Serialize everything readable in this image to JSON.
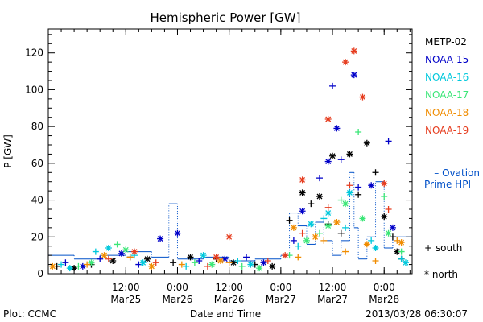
{
  "chart_data": {
    "type": "scatter",
    "title": "Hemispheric Power [GW]",
    "ylabel": "P [GW]",
    "xlabel": "Date and Time",
    "ylim": [
      0,
      133
    ],
    "xlim": [
      "2013-03-24 18:00",
      "2013-03-28 06:30"
    ],
    "yticks": [
      0,
      20,
      40,
      60,
      80,
      100,
      120
    ],
    "xticks": [
      {
        "t": "2013-03-25 12:00",
        "line1": "12:00",
        "line2": "Mar25"
      },
      {
        "t": "2013-03-26 00:00",
        "line1": "0:00",
        "line2": "Mar26"
      },
      {
        "t": "2013-03-26 12:00",
        "line1": "12:00",
        "line2": "Mar26"
      },
      {
        "t": "2013-03-27 00:00",
        "line1": "0:00",
        "line2": "Mar27"
      },
      {
        "t": "2013-03-27 12:00",
        "line1": "12:00",
        "line2": "Mar27"
      },
      {
        "t": "2013-03-28 00:00",
        "line1": "0:00",
        "line2": "Mar28"
      }
    ],
    "grid": false,
    "legend_position": "right",
    "symbols": {
      "south": "+",
      "north": "*"
    },
    "symbol_legend": [
      {
        "glyph": "+",
        "label": "south"
      },
      {
        "glyph": "*",
        "label": "north"
      }
    ],
    "series": [
      {
        "name": "METP-02",
        "color": "#000000",
        "south": [
          [
            "2013-03-24 20:00",
            4
          ],
          [
            "2013-03-25 04:00",
            5
          ],
          [
            "2013-03-25 13:00",
            9
          ],
          [
            "2013-03-25 23:00",
            6
          ],
          [
            "2013-03-26 09:00",
            8
          ],
          [
            "2013-03-26 18:00",
            5
          ],
          [
            "2013-03-27 02:00",
            29
          ],
          [
            "2013-03-27 07:00",
            38
          ],
          [
            "2013-03-27 11:00",
            27
          ],
          [
            "2013-03-27 14:00",
            22
          ],
          [
            "2013-03-27 18:00",
            43
          ],
          [
            "2013-03-27 22:00",
            55
          ],
          [
            "2013-03-28 02:00",
            20
          ],
          [
            "2013-03-28 04:00",
            8
          ]
        ],
        "north": [
          [
            "2013-03-25 00:00",
            3
          ],
          [
            "2013-03-25 09:00",
            7
          ],
          [
            "2013-03-25 17:00",
            8
          ],
          [
            "2013-03-26 03:00",
            9
          ],
          [
            "2013-03-26 13:00",
            6
          ],
          [
            "2013-03-26 22:00",
            4
          ],
          [
            "2013-03-27 05:00",
            44
          ],
          [
            "2013-03-27 09:00",
            42
          ],
          [
            "2013-03-27 12:00",
            64
          ],
          [
            "2013-03-27 16:00",
            65
          ],
          [
            "2013-03-27 20:00",
            71
          ],
          [
            "2013-03-28 00:00",
            31
          ],
          [
            "2013-03-28 03:00",
            12
          ]
        ]
      },
      {
        "name": "NOAA-15",
        "color": "#0000c8",
        "south": [
          [
            "2013-03-24 22:00",
            6
          ],
          [
            "2013-03-25 06:00",
            8
          ],
          [
            "2013-03-25 15:00",
            5
          ],
          [
            "2013-03-26 05:00",
            7
          ],
          [
            "2013-03-26 16:00",
            9
          ],
          [
            "2013-03-27 03:00",
            18
          ],
          [
            "2013-03-27 09:00",
            52
          ],
          [
            "2013-03-27 12:00",
            102
          ],
          [
            "2013-03-27 14:00",
            62
          ],
          [
            "2013-03-27 18:00",
            47
          ],
          [
            "2013-03-28 01:00",
            72
          ]
        ],
        "north": [
          [
            "2013-03-25 02:00",
            4
          ],
          [
            "2013-03-25 11:00",
            11
          ],
          [
            "2013-03-25 20:00",
            19
          ],
          [
            "2013-03-26 00:00",
            22
          ],
          [
            "2013-03-26 11:00",
            8
          ],
          [
            "2013-03-26 20:00",
            6
          ],
          [
            "2013-03-27 05:00",
            34
          ],
          [
            "2013-03-27 11:00",
            61
          ],
          [
            "2013-03-27 13:00",
            79
          ],
          [
            "2013-03-27 17:00",
            108
          ],
          [
            "2013-03-27 21:00",
            48
          ],
          [
            "2013-03-28 02:00",
            25
          ]
        ]
      },
      {
        "name": "NOAA-16",
        "color": "#00c8dc",
        "south": [
          [
            "2013-03-24 21:00",
            5
          ],
          [
            "2013-03-25 05:00",
            12
          ],
          [
            "2013-03-25 14:00",
            10
          ],
          [
            "2013-03-26 02:00",
            4
          ],
          [
            "2013-03-26 14:00",
            7
          ],
          [
            "2013-03-27 04:00",
            15
          ],
          [
            "2013-03-27 10:00",
            30
          ],
          [
            "2013-03-27 15:00",
            25
          ],
          [
            "2013-03-27 21:00",
            18
          ],
          [
            "2013-03-28 04:00",
            8
          ]
        ],
        "north": [
          [
            "2013-03-24 23:00",
            3
          ],
          [
            "2013-03-25 08:00",
            14
          ],
          [
            "2013-03-25 16:00",
            6
          ],
          [
            "2013-03-26 06:00",
            10
          ],
          [
            "2013-03-26 17:00",
            5
          ],
          [
            "2013-03-27 07:00",
            27
          ],
          [
            "2013-03-27 11:00",
            33
          ],
          [
            "2013-03-27 16:00",
            44
          ],
          [
            "2013-03-27 22:00",
            14
          ],
          [
            "2013-03-28 05:00",
            6
          ]
        ]
      },
      {
        "name": "NOAA-17",
        "color": "#3ce678",
        "south": [
          [
            "2013-03-25 01:00",
            4
          ],
          [
            "2013-03-25 10:00",
            16
          ],
          [
            "2013-03-26 04:00",
            6
          ],
          [
            "2013-03-26 15:00",
            4
          ],
          [
            "2013-03-27 02:00",
            10
          ],
          [
            "2013-03-27 09:00",
            22
          ],
          [
            "2013-03-27 14:00",
            40
          ],
          [
            "2013-03-27 18:00",
            77
          ],
          [
            "2013-03-28 00:00",
            42
          ],
          [
            "2013-03-28 04:00",
            12
          ]
        ],
        "north": [
          [
            "2013-03-25 04:00",
            6
          ],
          [
            "2013-03-25 12:00",
            13
          ],
          [
            "2013-03-26 08:00",
            5
          ],
          [
            "2013-03-26 19:00",
            3
          ],
          [
            "2013-03-27 06:00",
            18
          ],
          [
            "2013-03-27 11:00",
            26
          ],
          [
            "2013-03-27 15:00",
            38
          ],
          [
            "2013-03-27 19:00",
            30
          ],
          [
            "2013-03-28 01:00",
            22
          ]
        ]
      },
      {
        "name": "NOAA-18",
        "color": "#f08c00",
        "south": [
          [
            "2013-03-25 03:00",
            5
          ],
          [
            "2013-03-25 13:00",
            9
          ],
          [
            "2013-03-26 01:00",
            5
          ],
          [
            "2013-03-26 12:00",
            6
          ],
          [
            "2013-03-27 04:00",
            9
          ],
          [
            "2013-03-27 10:00",
            18
          ],
          [
            "2013-03-27 15:00",
            12
          ],
          [
            "2013-03-27 22:00",
            7
          ],
          [
            "2013-03-28 03:00",
            18
          ]
        ],
        "north": [
          [
            "2013-03-24 19:00",
            4
          ],
          [
            "2013-03-25 07:00",
            10
          ],
          [
            "2013-03-25 18:00",
            4
          ],
          [
            "2013-03-26 10:00",
            7
          ],
          [
            "2013-03-27 03:00",
            25
          ],
          [
            "2013-03-27 08:00",
            20
          ],
          [
            "2013-03-27 13:00",
            28
          ],
          [
            "2013-03-27 20:00",
            16
          ],
          [
            "2013-03-28 04:00",
            17
          ]
        ]
      },
      {
        "name": "NOAA-19",
        "color": "#e63c1e",
        "south": [
          [
            "2013-03-25 08:00",
            8
          ],
          [
            "2013-03-25 19:00",
            6
          ],
          [
            "2013-03-26 07:00",
            4
          ],
          [
            "2013-03-26 21:00",
            7
          ],
          [
            "2013-03-27 05:00",
            22
          ],
          [
            "2013-03-27 11:00",
            36
          ],
          [
            "2013-03-27 16:00",
            48
          ],
          [
            "2013-03-28 01:00",
            35
          ]
        ],
        "north": [
          [
            "2013-03-25 14:00",
            12
          ],
          [
            "2013-03-26 09:00",
            9
          ],
          [
            "2013-03-26 12:00",
            20
          ],
          [
            "2013-03-27 01:00",
            10
          ],
          [
            "2013-03-27 05:00",
            51
          ],
          [
            "2013-03-27 11:00",
            84
          ],
          [
            "2013-03-27 15:00",
            115
          ],
          [
            "2013-03-27 17:00",
            121
          ],
          [
            "2013-03-27 19:00",
            96
          ],
          [
            "2013-03-28 00:00",
            49
          ]
        ]
      }
    ],
    "ovation": {
      "name": "Ovation Prime HPI",
      "legend_label": "– Ovation Prime HPI",
      "color": "#0050c8",
      "steps": [
        [
          "2013-03-24 18:00",
          10
        ],
        [
          "2013-03-25 00:00",
          8
        ],
        [
          "2013-03-25 06:00",
          10
        ],
        [
          "2013-03-25 12:00",
          12
        ],
        [
          "2013-03-25 18:00",
          9
        ],
        [
          "2013-03-25 22:00",
          38
        ],
        [
          "2013-03-26 00:00",
          8
        ],
        [
          "2013-03-26 06:00",
          9
        ],
        [
          "2013-03-26 12:00",
          7
        ],
        [
          "2013-03-26 18:00",
          8
        ],
        [
          "2013-03-27 00:00",
          10
        ],
        [
          "2013-03-27 02:00",
          33
        ],
        [
          "2013-03-27 04:00",
          26
        ],
        [
          "2013-03-27 06:00",
          16
        ],
        [
          "2013-03-27 08:00",
          28
        ],
        [
          "2013-03-27 10:00",
          18
        ],
        [
          "2013-03-27 12:00",
          10
        ],
        [
          "2013-03-27 14:00",
          18
        ],
        [
          "2013-03-27 16:00",
          55
        ],
        [
          "2013-03-27 17:00",
          25
        ],
        [
          "2013-03-27 18:00",
          8
        ],
        [
          "2013-03-27 20:00",
          20
        ],
        [
          "2013-03-27 22:00",
          50
        ],
        [
          "2013-03-28 00:00",
          14
        ],
        [
          "2013-03-28 02:00",
          20
        ],
        [
          "2013-03-28 06:30",
          20
        ]
      ]
    }
  },
  "footer": {
    "plot_label": "Plot: CCMC",
    "timestamp": "2013/03/28 06:30:07"
  }
}
